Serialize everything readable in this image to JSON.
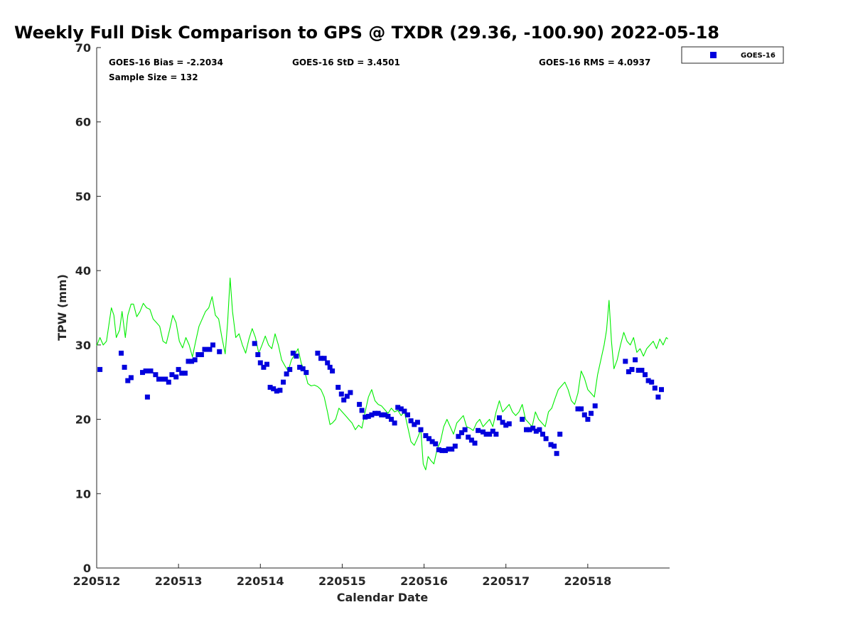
{
  "chart_data": {
    "type": "scatter+line",
    "title": "Weekly Full Disk Comparison to GPS @ TXDR (29.36, -100.90) 2022-05-18",
    "xlabel": "Calendar Date",
    "ylabel": "TPW (mm)",
    "ylim": [
      0,
      70
    ],
    "yticks": [
      "0",
      "10",
      "20",
      "30",
      "40",
      "50",
      "60",
      "70"
    ],
    "xlim": [
      0,
      7
    ],
    "xticks": [
      "220512",
      "220513",
      "220514",
      "220515",
      "220516",
      "220517",
      "220518"
    ],
    "stats": {
      "bias": "GOES-16 Bias = -2.2034",
      "std": "GOES-16 StD = 3.4501",
      "rms": "GOES-16 RMS = 4.0937",
      "sample": "Sample Size = 132"
    },
    "legend": {
      "label": "GOES-16",
      "position": "top-right, outside"
    },
    "colors": {
      "goes": "#0000dd",
      "gps": "#00ee00"
    },
    "series": [
      {
        "name": "GOES-16",
        "kind": "scatter",
        "points": [
          [
            0.04,
            26.7
          ],
          [
            0.3,
            28.9
          ],
          [
            0.34,
            27.0
          ],
          [
            0.38,
            25.2
          ],
          [
            0.42,
            25.6
          ],
          [
            0.56,
            26.3
          ],
          [
            0.6,
            26.5
          ],
          [
            0.62,
            23.0
          ],
          [
            0.66,
            26.5
          ],
          [
            0.72,
            26.0
          ],
          [
            0.76,
            25.4
          ],
          [
            0.8,
            25.4
          ],
          [
            0.84,
            25.4
          ],
          [
            0.88,
            25.0
          ],
          [
            0.92,
            26.0
          ],
          [
            0.97,
            25.7
          ],
          [
            1.0,
            26.7
          ],
          [
            1.04,
            26.2
          ],
          [
            1.08,
            26.2
          ],
          [
            1.12,
            27.8
          ],
          [
            1.16,
            27.8
          ],
          [
            1.2,
            28.0
          ],
          [
            1.24,
            28.7
          ],
          [
            1.28,
            28.7
          ],
          [
            1.32,
            29.4
          ],
          [
            1.38,
            29.4
          ],
          [
            1.42,
            30.0
          ],
          [
            1.5,
            29.1
          ],
          [
            1.93,
            30.2
          ],
          [
            1.97,
            28.7
          ],
          [
            2.0,
            27.6
          ],
          [
            2.04,
            27.0
          ],
          [
            2.08,
            27.4
          ],
          [
            2.12,
            24.3
          ],
          [
            2.16,
            24.1
          ],
          [
            2.2,
            23.8
          ],
          [
            2.24,
            23.9
          ],
          [
            2.28,
            25.0
          ],
          [
            2.32,
            26.1
          ],
          [
            2.36,
            26.7
          ],
          [
            2.4,
            28.9
          ],
          [
            2.44,
            28.5
          ],
          [
            2.48,
            27.0
          ],
          [
            2.52,
            26.8
          ],
          [
            2.56,
            26.3
          ],
          [
            2.7,
            28.9
          ],
          [
            2.74,
            28.2
          ],
          [
            2.78,
            28.2
          ],
          [
            2.82,
            27.6
          ],
          [
            2.85,
            27.0
          ],
          [
            2.88,
            26.5
          ],
          [
            2.95,
            24.3
          ],
          [
            2.99,
            23.4
          ],
          [
            3.02,
            22.6
          ],
          [
            3.06,
            23.1
          ],
          [
            3.1,
            23.6
          ],
          [
            3.21,
            22.0
          ],
          [
            3.24,
            21.2
          ],
          [
            3.28,
            20.3
          ],
          [
            3.32,
            20.4
          ],
          [
            3.36,
            20.6
          ],
          [
            3.4,
            20.8
          ],
          [
            3.44,
            20.8
          ],
          [
            3.48,
            20.6
          ],
          [
            3.52,
            20.6
          ],
          [
            3.56,
            20.4
          ],
          [
            3.6,
            20.0
          ],
          [
            3.64,
            19.5
          ],
          [
            3.68,
            21.6
          ],
          [
            3.72,
            21.4
          ],
          [
            3.76,
            21.1
          ],
          [
            3.8,
            20.6
          ],
          [
            3.84,
            19.8
          ],
          [
            3.88,
            19.3
          ],
          [
            3.92,
            19.6
          ],
          [
            3.96,
            18.6
          ],
          [
            4.02,
            17.8
          ],
          [
            4.06,
            17.4
          ],
          [
            4.1,
            17.0
          ],
          [
            4.14,
            16.7
          ],
          [
            4.18,
            15.9
          ],
          [
            4.22,
            15.8
          ],
          [
            4.26,
            15.8
          ],
          [
            4.3,
            16.0
          ],
          [
            4.34,
            16.0
          ],
          [
            4.38,
            16.4
          ],
          [
            4.42,
            17.7
          ],
          [
            4.46,
            18.2
          ],
          [
            4.5,
            18.6
          ],
          [
            4.54,
            17.6
          ],
          [
            4.58,
            17.2
          ],
          [
            4.62,
            16.8
          ],
          [
            4.66,
            18.5
          ],
          [
            4.72,
            18.3
          ],
          [
            4.76,
            18.0
          ],
          [
            4.8,
            18.0
          ],
          [
            4.84,
            18.4
          ],
          [
            4.88,
            18.0
          ],
          [
            4.92,
            20.2
          ],
          [
            4.96,
            19.6
          ],
          [
            5.0,
            19.2
          ],
          [
            5.04,
            19.4
          ],
          [
            5.2,
            20.0
          ],
          [
            5.25,
            18.6
          ],
          [
            5.29,
            18.6
          ],
          [
            5.33,
            18.8
          ],
          [
            5.37,
            18.4
          ],
          [
            5.41,
            18.6
          ],
          [
            5.45,
            18.0
          ],
          [
            5.49,
            17.4
          ],
          [
            5.55,
            16.6
          ],
          [
            5.59,
            16.4
          ],
          [
            5.62,
            15.4
          ],
          [
            5.66,
            18.0
          ],
          [
            5.88,
            21.4
          ],
          [
            5.92,
            21.4
          ],
          [
            5.96,
            20.6
          ],
          [
            6.0,
            20.0
          ],
          [
            6.04,
            20.8
          ],
          [
            6.09,
            21.8
          ],
          [
            6.46,
            27.8
          ],
          [
            6.5,
            26.4
          ],
          [
            6.54,
            26.7
          ],
          [
            6.58,
            28.0
          ],
          [
            6.62,
            26.6
          ],
          [
            6.66,
            26.6
          ],
          [
            6.7,
            26.0
          ],
          [
            6.74,
            25.2
          ],
          [
            6.78,
            25.0
          ],
          [
            6.82,
            24.2
          ],
          [
            6.86,
            23.0
          ],
          [
            6.9,
            24.0
          ]
        ]
      },
      {
        "name": "GPS",
        "kind": "line",
        "points": [
          [
            0.0,
            29.9
          ],
          [
            0.04,
            31.0
          ],
          [
            0.08,
            30.0
          ],
          [
            0.12,
            30.5
          ],
          [
            0.16,
            33.5
          ],
          [
            0.18,
            35.0
          ],
          [
            0.21,
            34.0
          ],
          [
            0.24,
            31.0
          ],
          [
            0.28,
            32.0
          ],
          [
            0.31,
            34.5
          ],
          [
            0.35,
            31.0
          ],
          [
            0.38,
            34.0
          ],
          [
            0.42,
            35.5
          ],
          [
            0.45,
            35.5
          ],
          [
            0.49,
            33.8
          ],
          [
            0.53,
            34.5
          ],
          [
            0.57,
            35.6
          ],
          [
            0.61,
            35.0
          ],
          [
            0.65,
            34.8
          ],
          [
            0.69,
            33.5
          ],
          [
            0.73,
            33.0
          ],
          [
            0.77,
            32.5
          ],
          [
            0.81,
            30.5
          ],
          [
            0.85,
            30.2
          ],
          [
            0.89,
            32.0
          ],
          [
            0.93,
            34.0
          ],
          [
            0.97,
            33.0
          ],
          [
            1.01,
            30.5
          ],
          [
            1.05,
            29.6
          ],
          [
            1.09,
            31.0
          ],
          [
            1.13,
            30.0
          ],
          [
            1.17,
            28.4
          ],
          [
            1.21,
            30.5
          ],
          [
            1.25,
            32.5
          ],
          [
            1.29,
            33.5
          ],
          [
            1.33,
            34.5
          ],
          [
            1.37,
            35.0
          ],
          [
            1.41,
            36.5
          ],
          [
            1.45,
            34.0
          ],
          [
            1.49,
            33.5
          ],
          [
            1.53,
            31.0
          ],
          [
            1.57,
            28.8
          ],
          [
            1.6,
            33.0
          ],
          [
            1.63,
            39.0
          ],
          [
            1.66,
            34.5
          ],
          [
            1.7,
            31.0
          ],
          [
            1.74,
            31.5
          ],
          [
            1.78,
            30.0
          ],
          [
            1.82,
            28.9
          ],
          [
            1.86,
            30.8
          ],
          [
            1.9,
            32.2
          ],
          [
            1.94,
            31.0
          ],
          [
            1.98,
            28.9
          ],
          [
            2.02,
            30.0
          ],
          [
            2.06,
            31.2
          ],
          [
            2.1,
            30.0
          ],
          [
            2.14,
            29.5
          ],
          [
            2.18,
            31.5
          ],
          [
            2.22,
            30.0
          ],
          [
            2.26,
            28.0
          ],
          [
            2.3,
            27.2
          ],
          [
            2.34,
            26.5
          ],
          [
            2.38,
            28.0
          ],
          [
            2.42,
            28.7
          ],
          [
            2.46,
            29.5
          ],
          [
            2.5,
            27.5
          ],
          [
            2.54,
            26.5
          ],
          [
            2.58,
            24.8
          ],
          [
            2.62,
            24.5
          ],
          [
            2.66,
            24.6
          ],
          [
            2.7,
            24.4
          ],
          [
            2.74,
            24.0
          ],
          [
            2.78,
            23.0
          ],
          [
            2.82,
            21.0
          ],
          [
            2.85,
            19.3
          ],
          [
            2.88,
            19.5
          ],
          [
            2.92,
            20.0
          ],
          [
            2.96,
            21.5
          ],
          [
            3.0,
            21.0
          ],
          [
            3.04,
            20.5
          ],
          [
            3.08,
            20.0
          ],
          [
            3.12,
            19.5
          ],
          [
            3.16,
            18.6
          ],
          [
            3.2,
            19.2
          ],
          [
            3.24,
            18.8
          ],
          [
            3.28,
            21.0
          ],
          [
            3.32,
            23.0
          ],
          [
            3.36,
            24.0
          ],
          [
            3.4,
            22.5
          ],
          [
            3.44,
            22.0
          ],
          [
            3.48,
            21.8
          ],
          [
            3.52,
            21.3
          ],
          [
            3.56,
            20.8
          ],
          [
            3.6,
            21.5
          ],
          [
            3.64,
            21.0
          ],
          [
            3.68,
            21.2
          ],
          [
            3.72,
            20.5
          ],
          [
            3.76,
            21.0
          ],
          [
            3.8,
            19.0
          ],
          [
            3.84,
            17.0
          ],
          [
            3.88,
            16.5
          ],
          [
            3.92,
            17.5
          ],
          [
            3.96,
            18.6
          ],
          [
            3.99,
            14.0
          ],
          [
            4.02,
            13.2
          ],
          [
            4.05,
            15.0
          ],
          [
            4.08,
            14.5
          ],
          [
            4.12,
            14.0
          ],
          [
            4.16,
            16.0
          ],
          [
            4.2,
            17.0
          ],
          [
            4.24,
            19.0
          ],
          [
            4.28,
            20.0
          ],
          [
            4.32,
            19.0
          ],
          [
            4.36,
            18.0
          ],
          [
            4.4,
            19.5
          ],
          [
            4.44,
            20.0
          ],
          [
            4.48,
            20.5
          ],
          [
            4.52,
            19.0
          ],
          [
            4.56,
            18.8
          ],
          [
            4.6,
            18.5
          ],
          [
            4.64,
            19.5
          ],
          [
            4.68,
            20.0
          ],
          [
            4.72,
            19.0
          ],
          [
            4.76,
            19.5
          ],
          [
            4.8,
            20.0
          ],
          [
            4.84,
            19.0
          ],
          [
            4.88,
            21.0
          ],
          [
            4.92,
            22.5
          ],
          [
            4.96,
            21.0
          ],
          [
            5.0,
            21.5
          ],
          [
            5.04,
            22.0
          ],
          [
            5.08,
            21.0
          ],
          [
            5.12,
            20.5
          ],
          [
            5.16,
            21.0
          ],
          [
            5.2,
            22.0
          ],
          [
            5.24,
            20.0
          ],
          [
            5.28,
            19.5
          ],
          [
            5.32,
            19.0
          ],
          [
            5.36,
            21.0
          ],
          [
            5.4,
            20.0
          ],
          [
            5.44,
            19.5
          ],
          [
            5.48,
            19.0
          ],
          [
            5.52,
            21.0
          ],
          [
            5.56,
            21.5
          ],
          [
            5.6,
            22.8
          ],
          [
            5.64,
            24.0
          ],
          [
            5.68,
            24.5
          ],
          [
            5.72,
            25.0
          ],
          [
            5.76,
            24.0
          ],
          [
            5.8,
            22.5
          ],
          [
            5.84,
            22.0
          ],
          [
            5.88,
            23.5
          ],
          [
            5.92,
            26.5
          ],
          [
            5.96,
            25.5
          ],
          [
            6.0,
            24.0
          ],
          [
            6.04,
            23.5
          ],
          [
            6.08,
            23.0
          ],
          [
            6.12,
            26.0
          ],
          [
            6.16,
            28.0
          ],
          [
            6.2,
            30.0
          ],
          [
            6.23,
            32.0
          ],
          [
            6.26,
            36.0
          ],
          [
            6.29,
            30.5
          ],
          [
            6.32,
            26.8
          ],
          [
            6.36,
            28.0
          ],
          [
            6.4,
            30.0
          ],
          [
            6.44,
            31.7
          ],
          [
            6.48,
            30.5
          ],
          [
            6.52,
            30.0
          ],
          [
            6.56,
            31.0
          ],
          [
            6.6,
            29.0
          ],
          [
            6.64,
            29.5
          ],
          [
            6.68,
            28.5
          ],
          [
            6.72,
            29.5
          ],
          [
            6.76,
            30.0
          ],
          [
            6.8,
            30.5
          ],
          [
            6.84,
            29.5
          ],
          [
            6.88,
            30.8
          ],
          [
            6.92,
            30.0
          ],
          [
            6.96,
            31.0
          ],
          [
            6.98,
            30.8
          ]
        ]
      }
    ]
  }
}
